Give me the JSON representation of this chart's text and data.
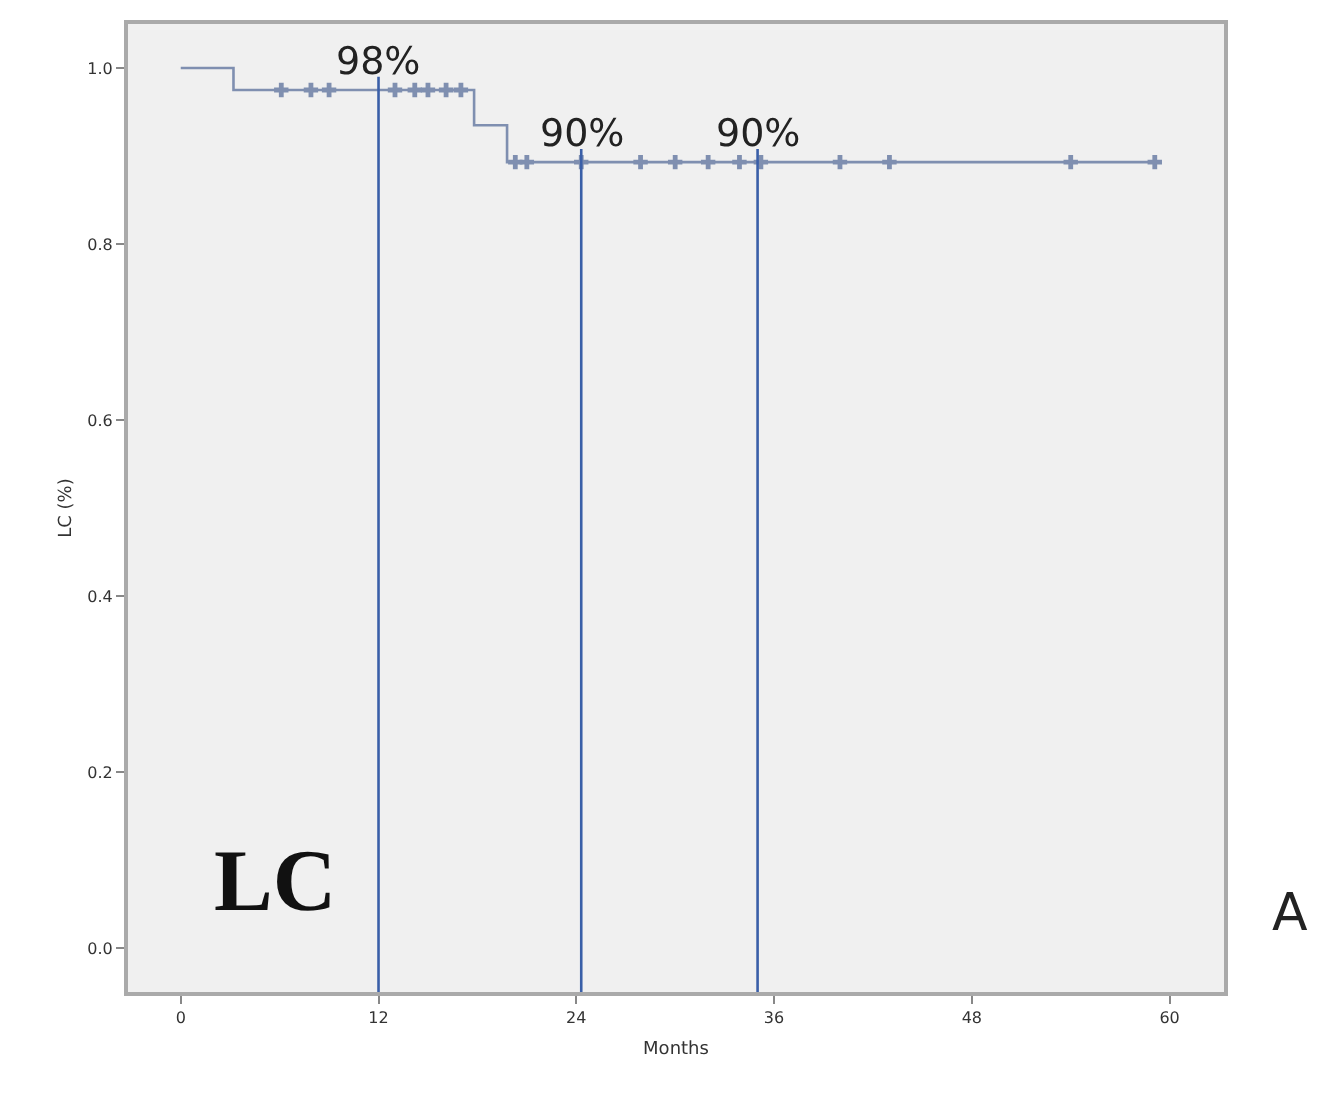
{
  "chart_data": {
    "type": "step",
    "xlabel": "Months",
    "ylabel": "LC (%)",
    "xlim": [
      -3.2,
      63.3
    ],
    "ylim": [
      -0.05,
      1.05
    ],
    "xticks": [
      0,
      12,
      24,
      36,
      48,
      60
    ],
    "yticks": [
      {
        "value": 0,
        "label": "0.0"
      },
      {
        "value": 0.2,
        "label": "0.2"
      },
      {
        "value": 0.4,
        "label": "0.4"
      },
      {
        "value": 0.6,
        "label": "0.6"
      },
      {
        "value": 0.8,
        "label": "0.8"
      },
      {
        "value": 1,
        "label": "1.0"
      }
    ],
    "grid": false,
    "series": [
      {
        "color": "#7f8fb0",
        "marker": "none",
        "x": [
          0,
          3.2,
          17.8,
          19.8,
          59.1
        ],
        "values": [
          1,
          0.975,
          0.935,
          0.893,
          0.893
        ]
      },
      {
        "type": "scatter",
        "color": "#7f8fb0",
        "marker": "cross",
        "x": [
          6.1,
          7.9,
          9.0,
          13.0,
          14.2,
          15.0,
          16.1,
          17.0,
          20.3,
          21.0,
          24.3,
          27.9,
          30.0,
          32.0,
          33.9,
          35.2,
          40.0,
          43.0,
          54.0,
          59.1
        ],
        "values": [
          0.975,
          0.975,
          0.975,
          0.975,
          0.975,
          0.975,
          0.975,
          0.975,
          0.893,
          0.893,
          0.893,
          0.893,
          0.893,
          0.893,
          0.893,
          0.893,
          0.893,
          0.893,
          0.893,
          0.893
        ]
      }
    ],
    "ref_lines": [
      {
        "axis": "x",
        "value": 12,
        "color": "#3a5fa8"
      },
      {
        "axis": "x",
        "value": 24.3,
        "color": "#3a5fa8"
      },
      {
        "axis": "x",
        "value": 35,
        "color": "#3a5fa8"
      }
    ],
    "annotations": [
      {
        "text": "98%",
        "x": 12,
        "y": 0.975
      },
      {
        "text": "90%",
        "x": 24.3,
        "y": 0.893
      },
      {
        "text": "90%",
        "x": 35,
        "y": 0.893
      },
      "LC",
      "A"
    ]
  }
}
